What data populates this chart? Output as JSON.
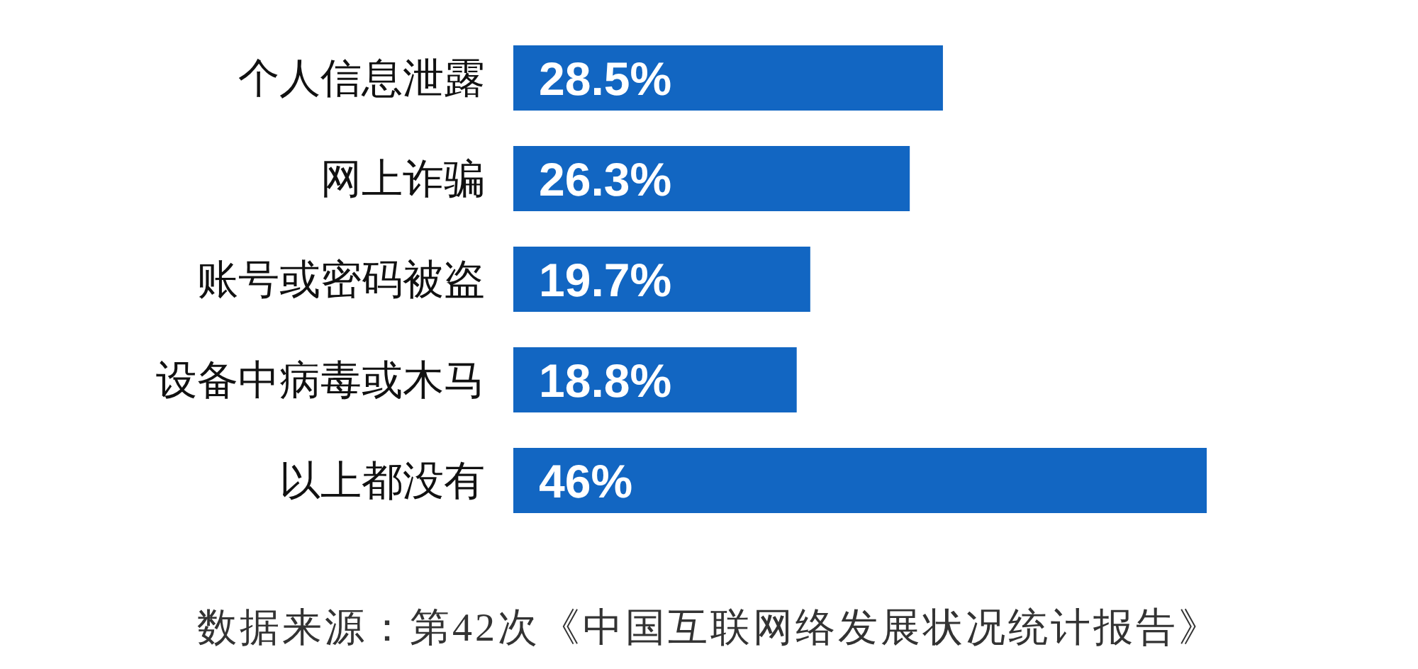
{
  "chart_data": {
    "type": "bar",
    "orientation": "horizontal",
    "categories": [
      "个人信息泄露",
      "网上诈骗",
      "账号或密码被盗",
      "设备中病毒或木马",
      "以上都没有"
    ],
    "values": [
      28.5,
      26.3,
      19.7,
      18.8,
      46
    ],
    "value_labels": [
      "28.5%",
      "26.3%",
      "19.7%",
      "18.8%",
      "46%"
    ],
    "color": "#1266c2",
    "annotations": [
      "数据来源：第42次《中国互联网络发展状况统计报告》"
    ]
  }
}
